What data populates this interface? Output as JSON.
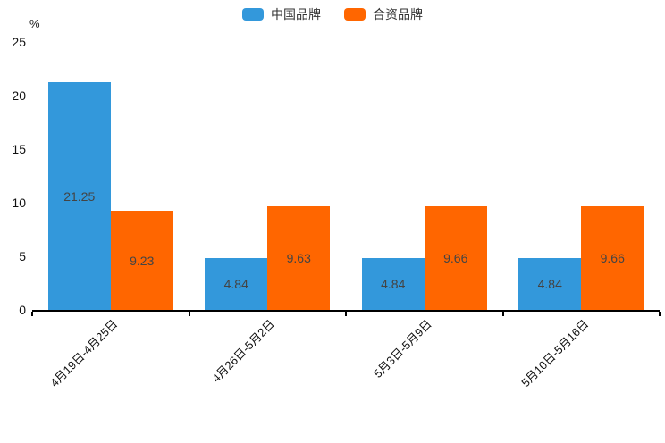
{
  "chart_data": {
    "type": "bar",
    "title": "",
    "ylabel": "%",
    "xlabel": "",
    "categories": [
      "4月19日-4月25日",
      "4月26日-5月2日",
      "5月3日-5月9日",
      "5月10日-5月16日"
    ],
    "series": [
      {
        "id": "china-brands",
        "name": "中国品牌",
        "color": "#3398DB",
        "values": [
          21.25,
          4.84,
          4.84,
          4.84
        ]
      },
      {
        "id": "joint-venture-brands",
        "name": "合资品牌",
        "color": "#FF6600",
        "values": [
          9.23,
          9.63,
          9.66,
          9.66
        ]
      }
    ],
    "ylim": [
      0,
      25
    ],
    "yticks": [
      0,
      5,
      10,
      15,
      20,
      25
    ],
    "grid": false,
    "legend_position": "top-center",
    "bar_label_position": "inside-center",
    "x_label_rotation_deg": 45,
    "value_label_color": "#444444",
    "axis_color": "#000000"
  }
}
